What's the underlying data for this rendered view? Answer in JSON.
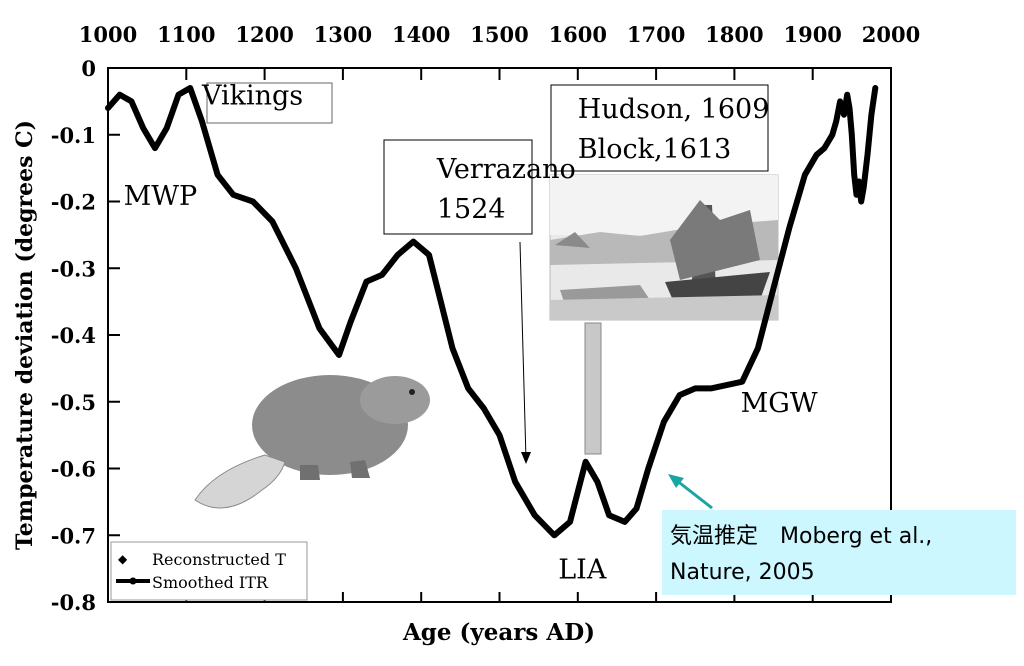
{
  "chart_data": {
    "type": "line",
    "title": "",
    "xlabel": "Age (years AD)",
    "ylabel": "Temperature deviation (degrees C)",
    "xlim": [
      1000,
      2000
    ],
    "ylim": [
      -0.8,
      0
    ],
    "x_ticks": [
      1000,
      1100,
      1200,
      1300,
      1400,
      1500,
      1600,
      1700,
      1800,
      1900,
      2000
    ],
    "y_ticks": [
      0,
      -0.1,
      -0.2,
      -0.3,
      -0.4,
      -0.5,
      -0.6,
      -0.7,
      -0.8
    ],
    "x_ticks_position": "top",
    "grid": false,
    "legend_position": "bottom-left",
    "series": [
      {
        "name": "Smoothed ITR",
        "x": [
          1000,
          1015,
          1030,
          1045,
          1060,
          1075,
          1090,
          1105,
          1120,
          1140,
          1160,
          1185,
          1210,
          1240,
          1270,
          1295,
          1310,
          1330,
          1350,
          1370,
          1390,
          1410,
          1425,
          1440,
          1460,
          1480,
          1500,
          1520,
          1545,
          1570,
          1590,
          1610,
          1625,
          1640,
          1660,
          1675,
          1690,
          1710,
          1730,
          1750,
          1770,
          1790,
          1810,
          1830,
          1850,
          1870,
          1890,
          1905,
          1915,
          1925,
          1930,
          1935,
          1940,
          1944,
          1947,
          1950,
          1953,
          1956,
          1959,
          1962,
          1965,
          1970,
          1975,
          1980
        ],
        "y": [
          -0.06,
          -0.04,
          -0.05,
          -0.09,
          -0.12,
          -0.09,
          -0.04,
          -0.03,
          -0.08,
          -0.16,
          -0.19,
          -0.2,
          -0.23,
          -0.3,
          -0.39,
          -0.43,
          -0.38,
          -0.32,
          -0.31,
          -0.28,
          -0.26,
          -0.28,
          -0.35,
          -0.42,
          -0.48,
          -0.51,
          -0.55,
          -0.62,
          -0.67,
          -0.7,
          -0.68,
          -0.59,
          -0.62,
          -0.67,
          -0.68,
          -0.66,
          -0.6,
          -0.53,
          -0.49,
          -0.48,
          -0.48,
          -0.475,
          -0.47,
          -0.42,
          -0.33,
          -0.24,
          -0.16,
          -0.13,
          -0.12,
          -0.1,
          -0.08,
          -0.05,
          -0.07,
          -0.04,
          -0.06,
          -0.1,
          -0.16,
          -0.19,
          -0.17,
          -0.2,
          -0.18,
          -0.13,
          -0.07,
          -0.03
        ]
      },
      {
        "name": "Reconstructed T",
        "x": [],
        "y": []
      }
    ],
    "annotations": [
      {
        "text": "Vikings",
        "x": 1120,
        "y": -0.04,
        "boxed": true
      },
      {
        "text": "MWP",
        "x": 1020,
        "y": -0.19
      },
      {
        "text": "Verrazano",
        "x": 1420,
        "y": -0.15,
        "boxed": true
      },
      {
        "text": "1524",
        "x": 1420,
        "y": -0.21
      },
      {
        "text": "Hudson, 1609",
        "x": 1600,
        "y": -0.06,
        "boxed": true
      },
      {
        "text": "Block,1613",
        "x": 1600,
        "y": -0.12
      },
      {
        "text": "LIA",
        "x": 1575,
        "y": -0.75
      },
      {
        "text": "MGW",
        "x": 1808,
        "y": -0.5
      }
    ],
    "note": {
      "line1": "気温推定　Moberg et al.,",
      "line2": "Nature, 2005"
    },
    "legend": {
      "reconstructed": "Reconstructed T",
      "smoothed": "Smoothed ITR"
    },
    "colors": {
      "line": "#000000",
      "note_bg": "#ccf7ff",
      "note_arrow": "#1aa5a5",
      "marker_bar": "#c8c8c8"
    }
  }
}
